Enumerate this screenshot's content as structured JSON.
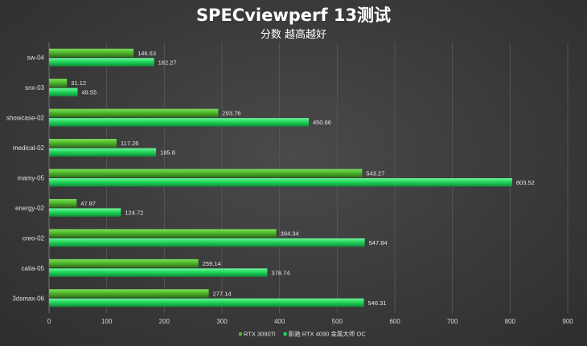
{
  "chart_data": {
    "type": "bar",
    "orientation": "horizontal",
    "title": "SPECviewperf 13测试",
    "subtitle": "分数 越高越好",
    "categories": [
      "sw-04",
      "snx-03",
      "showcase-02",
      "medical-02",
      "mamy-05",
      "energy-02",
      "creo-02",
      "catia-05",
      "3dsmax-06"
    ],
    "series": [
      {
        "name": "RTX 3090Ti",
        "color": "#4fb82a",
        "values": [
          146.63,
          31.12,
          293.76,
          117.26,
          543.27,
          47.87,
          394.34,
          259.14,
          277.14
        ]
      },
      {
        "name": "影驰 RTX 4090 金属大师 OC",
        "color": "#1fd65a",
        "values": [
          182.27,
          49.55,
          450.66,
          185.8,
          803.52,
          124.72,
          547.84,
          378.74,
          546.31
        ]
      }
    ],
    "xlim": [
      0,
      900
    ],
    "xticks": [
      0,
      100,
      200,
      300,
      400,
      500,
      600,
      700,
      800,
      900
    ],
    "grid": true,
    "legend_position": "bottom-right"
  }
}
